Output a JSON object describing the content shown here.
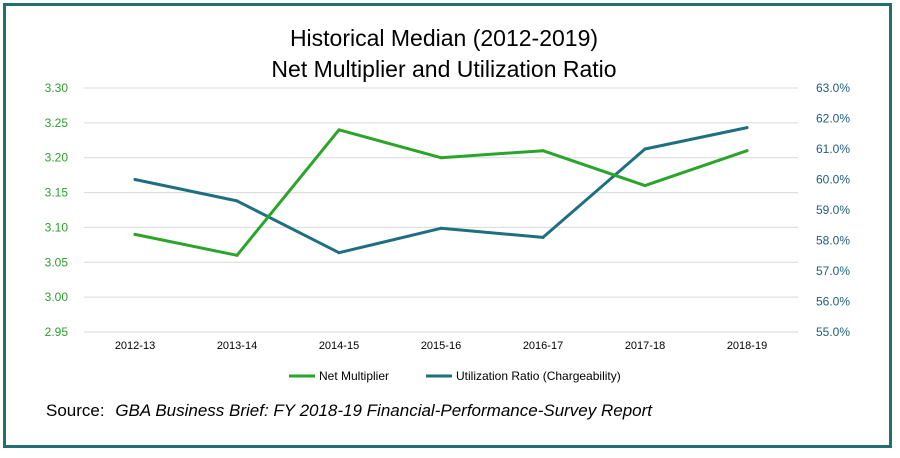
{
  "chart_data": {
    "type": "line",
    "title": "Historical Median (2012-2019)",
    "subtitle": "Net Multiplier and Utilization Ratio",
    "categories": [
      "2012-13",
      "2013-14",
      "2014-15",
      "2015-16",
      "2016-17",
      "2017-18",
      "2018-19"
    ],
    "series": [
      {
        "name": "Net Multiplier",
        "axis": "left",
        "color": "#2aa52a",
        "values": [
          3.09,
          3.06,
          3.24,
          3.2,
          3.21,
          3.16,
          3.21
        ]
      },
      {
        "name": "Utilization Ratio (Chargeability)",
        "axis": "right",
        "color": "#1f6f80",
        "values": [
          60.0,
          59.3,
          57.6,
          58.4,
          58.1,
          61.0,
          61.7
        ]
      }
    ],
    "y_left": {
      "ylim": [
        2.95,
        3.3
      ],
      "ticks": [
        "3.30",
        "3.25",
        "3.20",
        "3.15",
        "3.10",
        "3.05",
        "3.00",
        "2.95"
      ],
      "color": "#2e9e2e"
    },
    "y_right": {
      "ylim": [
        55.0,
        63.0
      ],
      "ticks": [
        "63.0%",
        "62.0%",
        "61.0%",
        "60.0%",
        "59.0%",
        "58.0%",
        "57.0%",
        "56.0%",
        "55.0%"
      ],
      "color": "#1f5f7a"
    },
    "grid": true,
    "legend_position": "bottom"
  },
  "source": {
    "label": "Source:",
    "text": "GBA Business Brief:  FY 2018-19 Financial-Performance-Survey Report"
  },
  "colors": {
    "frame": "#1f6f73",
    "gridline": "#d9d9d9"
  }
}
